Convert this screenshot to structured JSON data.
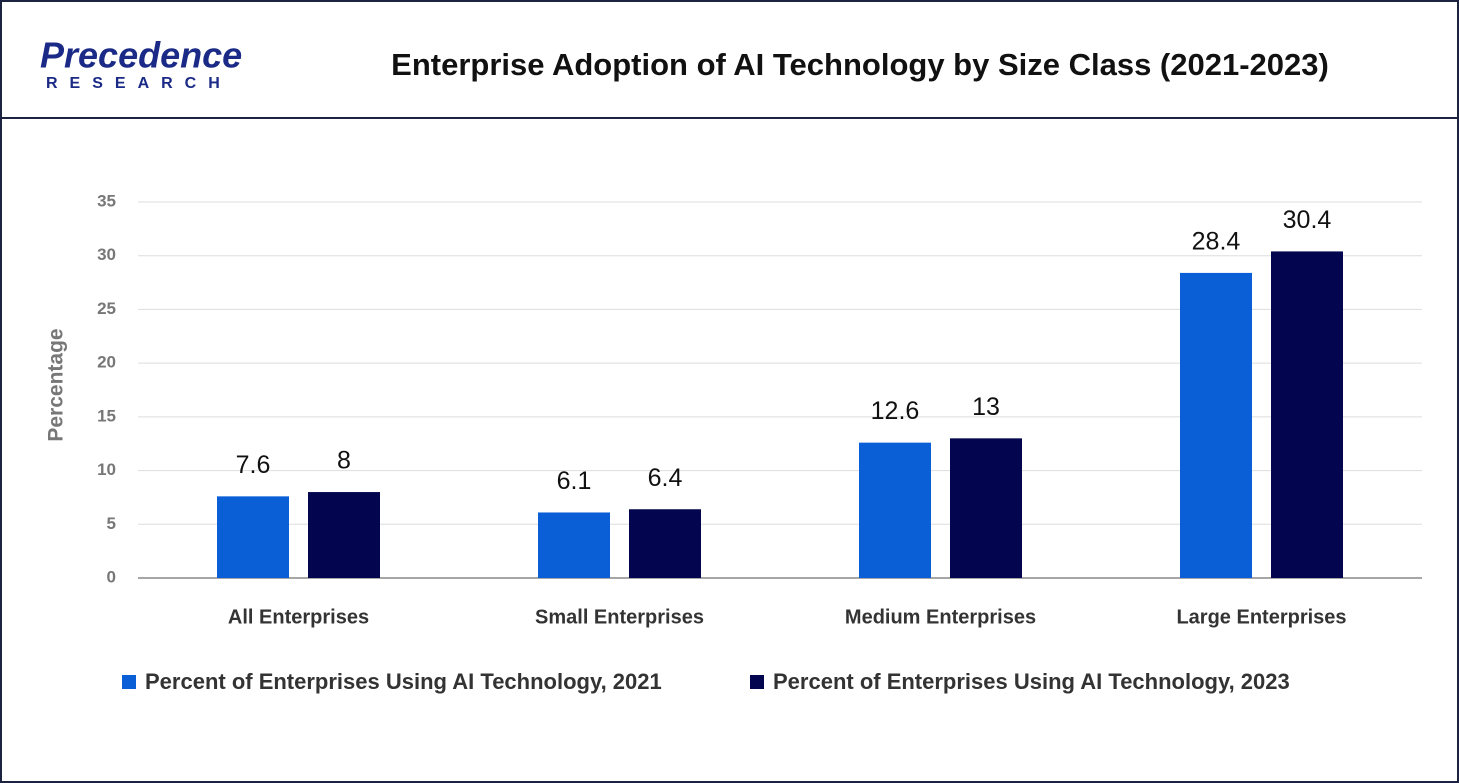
{
  "logo": {
    "name": "Precedence",
    "tagline": "RESEARCH"
  },
  "chart_data": {
    "type": "bar",
    "title": "Enterprise Adoption of AI Technology by Size Class (2021-2023)",
    "y_label": "Percentage",
    "categories": [
      "All Enterprises",
      "Small Enterprises",
      "Medium Enterprises",
      "Large Enterprises"
    ],
    "series": [
      {
        "name": "Percent of Enterprises Using AI Technology, 2021",
        "color": "#0a5fd6",
        "values": [
          7.6,
          6.1,
          12.6,
          28.4
        ]
      },
      {
        "name": "Percent of Enterprises Using AI Technology, 2023",
        "color": "#03064f",
        "values": [
          8,
          6.4,
          13,
          30.4
        ]
      }
    ],
    "ylim": [
      0,
      35
    ],
    "yticks": [
      0,
      5,
      10,
      15,
      20,
      25,
      30,
      35
    ],
    "grid": true,
    "legend": "bottom"
  }
}
